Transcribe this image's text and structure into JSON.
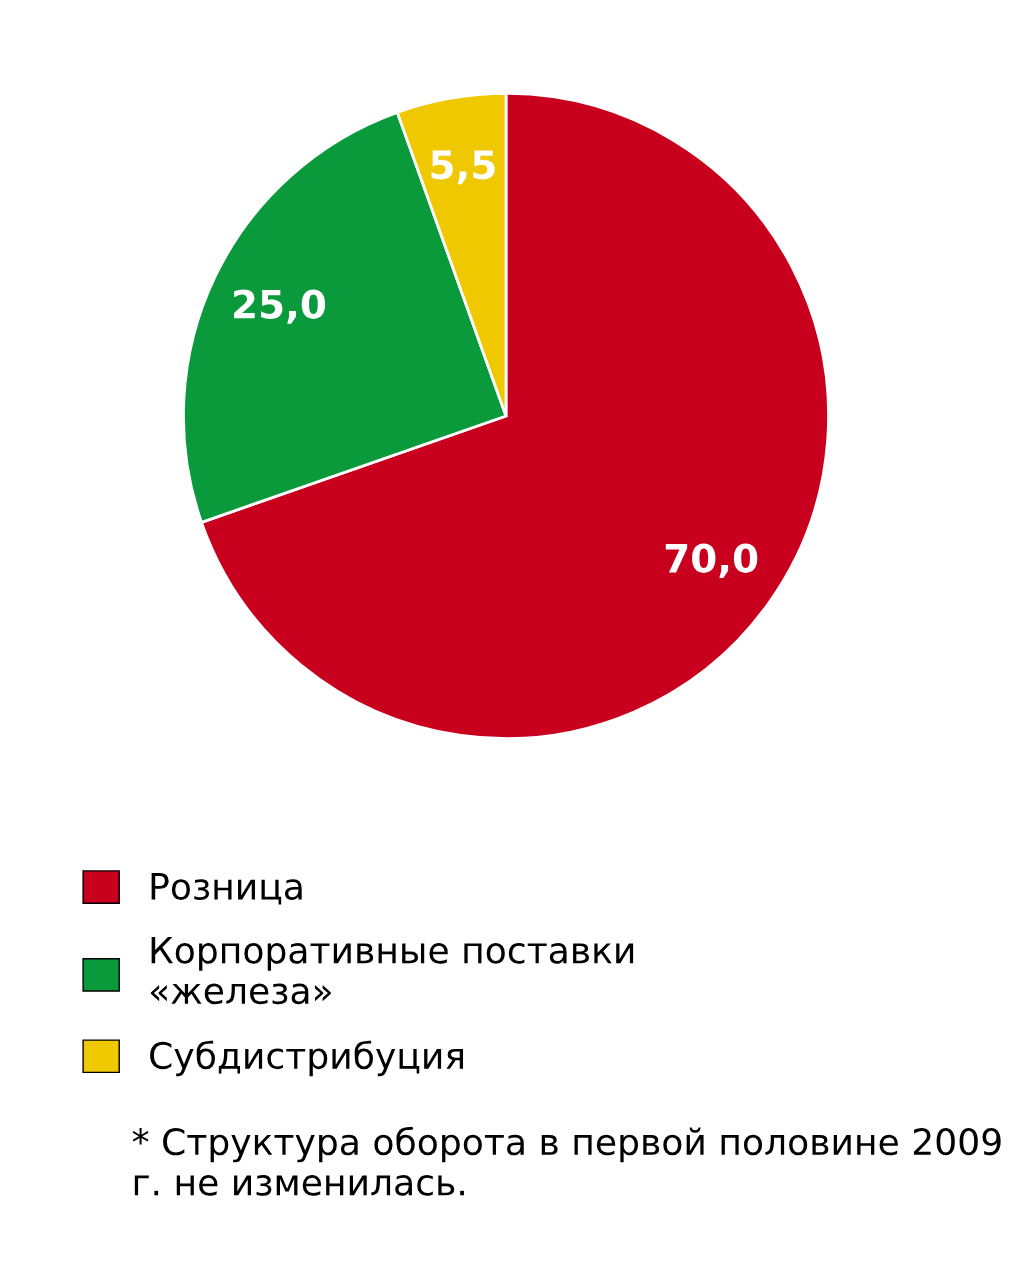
{
  "chart_data": {
    "type": "pie",
    "categories": [
      "Розница",
      "Корпоративные поставки «железа»",
      "Субдистрибуция"
    ],
    "values": [
      70.0,
      25.0,
      5.5
    ],
    "colors": [
      "#c8001e",
      "#0a9a3c",
      "#f0c800"
    ],
    "value_labels": [
      "70,0",
      "25,0",
      "5,5"
    ],
    "legend": "bottom",
    "annotations": [
      "* Структура оборота в первой половине 2009 г. не изменилась."
    ]
  }
}
